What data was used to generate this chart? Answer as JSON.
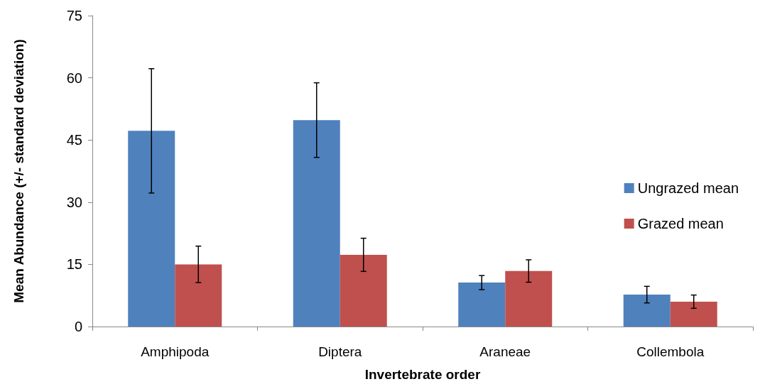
{
  "chart_data": {
    "type": "bar",
    "xlabel": "Invertebrate order",
    "ylabel": "Mean Abundance (+/- standard deviation)",
    "categories": [
      "Amphipoda",
      "Diptera",
      "Araneae",
      "Collembola"
    ],
    "series": [
      {
        "name": "Ungrazed mean",
        "color": "#4f81bd",
        "values": [
          47.2,
          49.8,
          10.6,
          7.7
        ],
        "errors": [
          15,
          9,
          1.7,
          2
        ]
      },
      {
        "name": "Grazed mean",
        "color": "#c0504d",
        "values": [
          15,
          17.3,
          13.4,
          6
        ],
        "errors": [
          4.4,
          4,
          2.7,
          1.6
        ]
      }
    ],
    "ylim": [
      0,
      75
    ],
    "yticks": [
      0,
      15,
      30,
      45,
      60,
      75
    ],
    "grid": false,
    "legend": "right"
  }
}
